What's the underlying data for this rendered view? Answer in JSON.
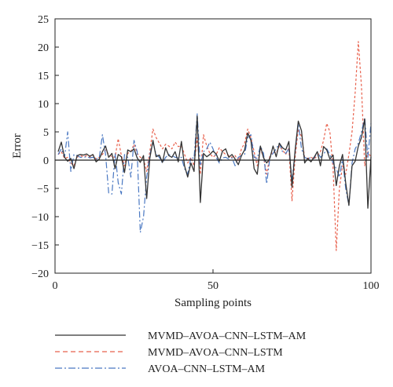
{
  "chart_data": {
    "type": "line",
    "title": "",
    "xlabel": "Sampling points",
    "ylabel": "Error",
    "xlim": [
      0,
      100
    ],
    "ylim": [
      -20,
      25
    ],
    "xticks": [
      0,
      50,
      100
    ],
    "yticks": [
      -20,
      -15,
      -10,
      -5,
      0,
      5,
      10,
      15,
      20,
      25
    ],
    "xtick_labels": [
      "0",
      "50",
      "100"
    ],
    "ytick_labels": [
      "−20",
      "−15",
      "−10",
      "−5",
      "0",
      "5",
      "10",
      "15",
      "20",
      "25"
    ],
    "grid": false,
    "legend_position": "bottom",
    "series": [
      {
        "name": "MVMD–AVOA–CNN–LSTM–AM",
        "color": "#333333",
        "style": "solid",
        "x": [
          1,
          2,
          3,
          4,
          5,
          6,
          7,
          8,
          9,
          10,
          11,
          12,
          13,
          14,
          15,
          16,
          17,
          18,
          19,
          20,
          21,
          22,
          23,
          24,
          25,
          26,
          27,
          28,
          29,
          30,
          31,
          32,
          33,
          34,
          35,
          36,
          37,
          38,
          39,
          40,
          41,
          42,
          43,
          44,
          45,
          46,
          47,
          48,
          49,
          50,
          51,
          52,
          53,
          54,
          55,
          56,
          57,
          58,
          59,
          60,
          61,
          62,
          63,
          64,
          65,
          66,
          67,
          68,
          69,
          70,
          71,
          72,
          73,
          74,
          75,
          76,
          77,
          78,
          79,
          80,
          81,
          82,
          83,
          84,
          85,
          86,
          87,
          88,
          89,
          90,
          91,
          92,
          93,
          94,
          95,
          96,
          97,
          98,
          99,
          100
        ],
        "y": [
          1.5,
          3.2,
          0.5,
          -0.2,
          0.3,
          -1.5,
          0.8,
          1.0,
          0.9,
          1.1,
          0.7,
          1.0,
          -0.3,
          0.2,
          1.5,
          2.5,
          0.5,
          1.2,
          -1.5,
          1.0,
          0.6,
          -2.2,
          1.8,
          1.5,
          2.0,
          0.4,
          -0.4,
          0.8,
          -6.8,
          0.3,
          3.5,
          0.6,
          0.9,
          -0.4,
          2.2,
          0.8,
          0.5,
          1.5,
          -0.3,
          3.3,
          -1.0,
          -3.0,
          -0.5,
          -2.0,
          7.8,
          -7.5,
          1.2,
          0.6,
          1.0,
          1.6,
          1.1,
          -0.2,
          1.6,
          2.0,
          0.5,
          1.0,
          0.2,
          -0.8,
          0.8,
          1.8,
          4.8,
          3.5,
          -1.5,
          -2.5,
          2.5,
          0.4,
          -0.5,
          0.3,
          2.5,
          0.6,
          3.0,
          2.2,
          1.8,
          3.3,
          -4.8,
          1.8,
          6.9,
          5.2,
          -0.5,
          0.3,
          -0.3,
          0.5,
          1.5,
          -1.0,
          2.4,
          1.8,
          0.2,
          0.9,
          -4.5,
          -1.0,
          1.0,
          -4.0,
          -8.0,
          -1.0,
          -0.2,
          2.5,
          4.0,
          7.3,
          -8.5,
          0.6
        ]
      },
      {
        "name": "MVMD–AVOA–CNN–LSTM",
        "color": "#e8604c",
        "style": "dashed",
        "x": [
          1,
          2,
          3,
          4,
          5,
          6,
          7,
          8,
          9,
          10,
          11,
          12,
          13,
          14,
          15,
          16,
          17,
          18,
          19,
          20,
          21,
          22,
          23,
          24,
          25,
          26,
          27,
          28,
          29,
          30,
          31,
          32,
          33,
          34,
          35,
          36,
          37,
          38,
          39,
          40,
          41,
          42,
          43,
          44,
          45,
          46,
          47,
          48,
          49,
          50,
          51,
          52,
          53,
          54,
          55,
          56,
          57,
          58,
          59,
          60,
          61,
          62,
          63,
          64,
          65,
          66,
          67,
          68,
          69,
          70,
          71,
          72,
          73,
          74,
          75,
          76,
          77,
          78,
          79,
          80,
          81,
          82,
          83,
          84,
          85,
          86,
          87,
          88,
          89,
          90,
          91,
          92,
          93,
          94,
          95,
          96,
          97,
          98,
          99,
          100
        ],
        "y": [
          1.0,
          1.5,
          0.3,
          0.5,
          -0.5,
          -1.0,
          0.5,
          0.8,
          0.6,
          0.8,
          0.5,
          0.9,
          0.2,
          0.5,
          1.0,
          1.8,
          1.0,
          0.6,
          0.5,
          3.8,
          0.8,
          -1.0,
          1.2,
          1.5,
          2.8,
          1.2,
          0.5,
          0.2,
          -2.0,
          1.5,
          5.5,
          4.0,
          3.0,
          2.0,
          2.8,
          2.5,
          2.0,
          3.2,
          2.4,
          2.5,
          1.0,
          -0.5,
          0.5,
          -1.0,
          4.0,
          -2.5,
          4.5,
          2.5,
          1.2,
          0.5,
          1.0,
          2.2,
          1.5,
          1.0,
          0.8,
          0.5,
          0.8,
          -0.2,
          2.0,
          3.0,
          5.5,
          4.0,
          1.5,
          -1.0,
          2.0,
          0.5,
          -2.5,
          0.8,
          1.5,
          1.2,
          2.5,
          1.8,
          1.0,
          2.2,
          -7.2,
          0.5,
          5.5,
          4.2,
          0.5,
          0.3,
          0.5,
          0.2,
          0.8,
          1.5,
          3.5,
          6.5,
          5.0,
          -1.5,
          -16.0,
          -5.0,
          -1.0,
          -2.5,
          1.0,
          5.0,
          12.0,
          21.0,
          13.0,
          -1.0,
          1.5,
          0.5
        ]
      },
      {
        "name": "AVOA–CNN–LSTM–AM",
        "color": "#4a78c2",
        "style": "dashdot",
        "x": [
          1,
          2,
          3,
          4,
          5,
          6,
          7,
          8,
          9,
          10,
          11,
          12,
          13,
          14,
          15,
          16,
          17,
          18,
          19,
          20,
          21,
          22,
          23,
          24,
          25,
          26,
          27,
          28,
          29,
          30,
          31,
          32,
          33,
          34,
          35,
          36,
          37,
          38,
          39,
          40,
          41,
          42,
          43,
          44,
          45,
          46,
          47,
          48,
          49,
          50,
          51,
          52,
          53,
          54,
          55,
          56,
          57,
          58,
          59,
          60,
          61,
          62,
          63,
          64,
          65,
          66,
          67,
          68,
          69,
          70,
          71,
          72,
          73,
          74,
          75,
          76,
          77,
          78,
          79,
          80,
          81,
          82,
          83,
          84,
          85,
          86,
          87,
          88,
          89,
          90,
          91,
          92,
          93,
          94,
          95,
          96,
          97,
          98,
          99,
          100
        ],
        "y": [
          1.0,
          2.0,
          0.5,
          5.0,
          -2.0,
          1.0,
          0.8,
          0.5,
          0.5,
          0.6,
          0.4,
          0.5,
          0.2,
          0.4,
          4.5,
          1.0,
          -5.8,
          -6.0,
          1.2,
          -4.0,
          -6.0,
          1.0,
          0.5,
          -3.0,
          3.5,
          1.5,
          -12.8,
          -10.0,
          -3.0,
          1.0,
          3.2,
          1.0,
          0.5,
          -0.5,
          0.5,
          1.0,
          0.8,
          0.5,
          0.4,
          0.5,
          -1.5,
          -2.5,
          0.5,
          0.3,
          8.2,
          -1.0,
          1.5,
          2.0,
          3.2,
          2.0,
          0.5,
          -0.5,
          0.4,
          0.5,
          0.2,
          0.4,
          -1.0,
          0.5,
          0.8,
          1.0,
          4.0,
          4.5,
          0.5,
          0.3,
          2.5,
          1.2,
          -4.2,
          0.5,
          1.2,
          2.0,
          3.0,
          1.5,
          1.2,
          2.0,
          -3.5,
          1.5,
          6.5,
          2.0,
          0.5,
          0.2,
          0.5,
          0.3,
          1.5,
          0.5,
          1.0,
          2.0,
          1.0,
          -0.5,
          -1.5,
          -3.0,
          0.2,
          -5.0,
          -8.0,
          -0.5,
          2.0,
          3.0,
          5.0,
          7.5,
          0.5,
          6.5
        ]
      }
    ]
  }
}
